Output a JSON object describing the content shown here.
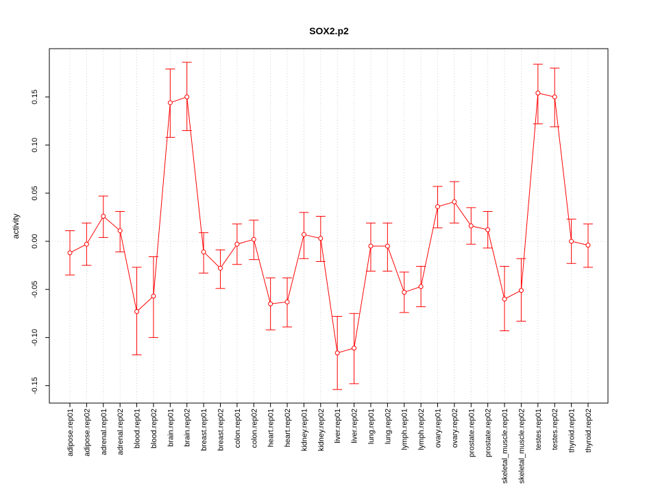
{
  "chart_data": {
    "type": "line",
    "title": "SOX2.p2",
    "xlabel": "",
    "ylabel": "activity",
    "ylim": [
      -0.168,
      0.2
    ],
    "yticks": [
      -0.15,
      -0.1,
      -0.05,
      0.0,
      0.05,
      0.1,
      0.15
    ],
    "ytick_labels": [
      "-0.15",
      "-0.10",
      "-0.05",
      "0.00",
      "0.05",
      "0.10",
      "0.15"
    ],
    "grid": "dotted vertical at each category, dotted horizontal at 0",
    "color": "#ff0000",
    "categories": [
      "adipose.rep01",
      "adipose.rep02",
      "adrenal.rep01",
      "adrenal.rep02",
      "blood.rep01",
      "blood.rep02",
      "brain.rep01",
      "brain.rep02",
      "breast.rep01",
      "breast.rep02",
      "colon.rep01",
      "colon.rep02",
      "heart.rep01",
      "heart.rep02",
      "kidney.rep01",
      "kidney.rep02",
      "liver.rep01",
      "liver.rep02",
      "lung.rep01",
      "lung.rep02",
      "lymph.rep01",
      "lymph.rep02",
      "ovary.rep01",
      "ovary.rep02",
      "prostate.rep01",
      "prostate.rep02",
      "skeletal_muscle.rep01",
      "skeletal_muscle.rep02",
      "testes.rep01",
      "testes.rep02",
      "thyroid.rep01",
      "thyroid.rep02"
    ],
    "values": [
      -0.012,
      -0.003,
      0.026,
      0.011,
      -0.073,
      -0.057,
      0.144,
      0.15,
      -0.011,
      -0.028,
      -0.003,
      0.002,
      -0.065,
      -0.063,
      0.007,
      0.003,
      -0.116,
      -0.111,
      -0.005,
      -0.005,
      -0.053,
      -0.047,
      0.036,
      0.041,
      0.016,
      0.012,
      -0.06,
      -0.051,
      0.154,
      0.15,
      0.0,
      -0.004
    ],
    "upper": [
      0.011,
      0.019,
      0.047,
      0.031,
      -0.027,
      -0.016,
      0.179,
      0.186,
      0.009,
      -0.009,
      0.018,
      0.022,
      -0.038,
      -0.038,
      0.03,
      0.026,
      -0.078,
      -0.075,
      0.019,
      0.019,
      -0.032,
      -0.026,
      0.057,
      0.062,
      0.035,
      0.031,
      -0.026,
      -0.018,
      0.184,
      0.18,
      0.023,
      0.018
    ],
    "lower": [
      -0.035,
      -0.025,
      0.004,
      -0.011,
      -0.118,
      -0.1,
      0.108,
      0.115,
      -0.033,
      -0.049,
      -0.024,
      -0.019,
      -0.092,
      -0.089,
      -0.018,
      -0.021,
      -0.154,
      -0.148,
      -0.031,
      -0.031,
      -0.074,
      -0.068,
      0.014,
      0.019,
      -0.003,
      -0.007,
      -0.093,
      -0.083,
      0.122,
      0.119,
      -0.023,
      -0.027
    ]
  }
}
